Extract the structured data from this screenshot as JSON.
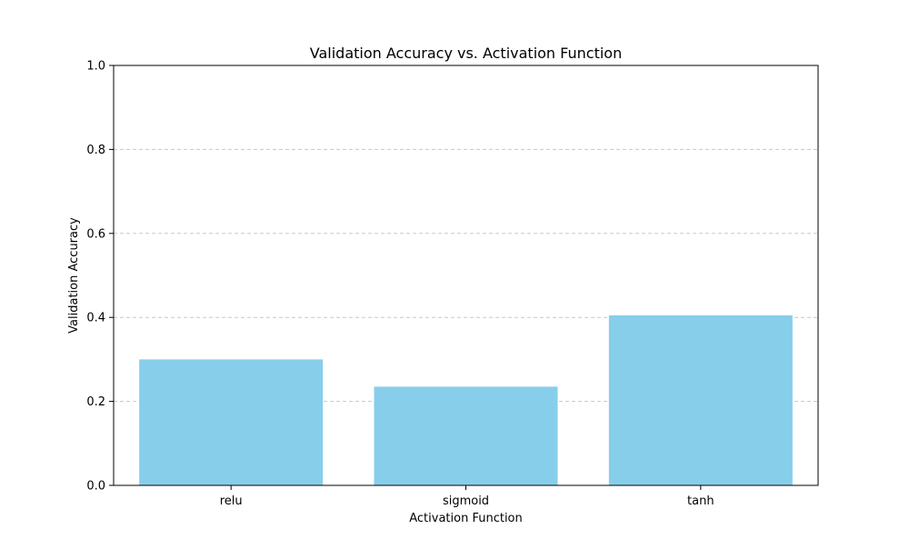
{
  "chart_data": {
    "type": "bar",
    "title": "Validation Accuracy vs. Activation Function",
    "xlabel": "Activation Function",
    "ylabel": "Validation Accuracy",
    "categories": [
      "relu",
      "sigmoid",
      "tanh"
    ],
    "values": [
      0.3,
      0.235,
      0.405
    ],
    "ylim": [
      0,
      1.0
    ],
    "yticks": [
      "0.0",
      "0.2",
      "0.4",
      "0.6",
      "0.8",
      "1.0"
    ],
    "grid": "horizontal dashed",
    "legend": "none",
    "bar_color": "#87ceeb",
    "grid_color": "#c8c8c8"
  }
}
